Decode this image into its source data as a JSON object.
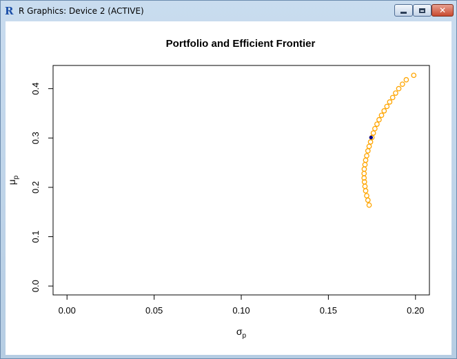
{
  "window": {
    "title": "R Graphics: Device 2 (ACTIVE)",
    "app_icon_glyph": "R",
    "close_glyph": "✕"
  },
  "chart_data": {
    "type": "scatter",
    "title": "Portfolio and Efficient Frontier",
    "xlabel": "σ",
    "xlabel_sub": "p",
    "ylabel": "μ",
    "ylabel_sub": "p",
    "xlim": [
      -0.008,
      0.208
    ],
    "ylim": [
      -0.018,
      0.447
    ],
    "x_ticks": [
      0.0,
      0.05,
      0.1,
      0.15,
      0.2
    ],
    "x_tick_labels": [
      "0.00",
      "0.05",
      "0.10",
      "0.15",
      "0.20"
    ],
    "y_ticks": [
      0.0,
      0.1,
      0.2,
      0.3,
      0.4
    ],
    "y_tick_labels": [
      "0.0",
      "0.1",
      "0.2",
      "0.3",
      "0.4"
    ],
    "grid": false,
    "point_color": "#FFA500",
    "highlight_color": "#00008B",
    "frontier": [
      {
        "x": 0.1734,
        "y": 0.164
      },
      {
        "x": 0.1727,
        "y": 0.174
      },
      {
        "x": 0.172,
        "y": 0.183
      },
      {
        "x": 0.1714,
        "y": 0.193
      },
      {
        "x": 0.171,
        "y": 0.202
      },
      {
        "x": 0.1707,
        "y": 0.211
      },
      {
        "x": 0.1705,
        "y": 0.219
      },
      {
        "x": 0.1705,
        "y": 0.228
      },
      {
        "x": 0.1706,
        "y": 0.237
      },
      {
        "x": 0.171,
        "y": 0.246
      },
      {
        "x": 0.1714,
        "y": 0.255
      },
      {
        "x": 0.172,
        "y": 0.264
      },
      {
        "x": 0.1727,
        "y": 0.274
      },
      {
        "x": 0.1734,
        "y": 0.283
      },
      {
        "x": 0.1742,
        "y": 0.292
      },
      {
        "x": 0.175,
        "y": 0.301
      },
      {
        "x": 0.1758,
        "y": 0.31
      },
      {
        "x": 0.1767,
        "y": 0.319
      },
      {
        "x": 0.1779,
        "y": 0.328
      },
      {
        "x": 0.1791,
        "y": 0.337
      },
      {
        "x": 0.1805,
        "y": 0.346
      },
      {
        "x": 0.182,
        "y": 0.355
      },
      {
        "x": 0.1836,
        "y": 0.364
      },
      {
        "x": 0.1852,
        "y": 0.373
      },
      {
        "x": 0.1869,
        "y": 0.382
      },
      {
        "x": 0.1886,
        "y": 0.391
      },
      {
        "x": 0.1904,
        "y": 0.4
      },
      {
        "x": 0.1925,
        "y": 0.409
      },
      {
        "x": 0.1947,
        "y": 0.418
      },
      {
        "x": 0.199,
        "y": 0.427
      }
    ],
    "highlight_point": {
      "x": 0.1745,
      "y": 0.301
    }
  }
}
